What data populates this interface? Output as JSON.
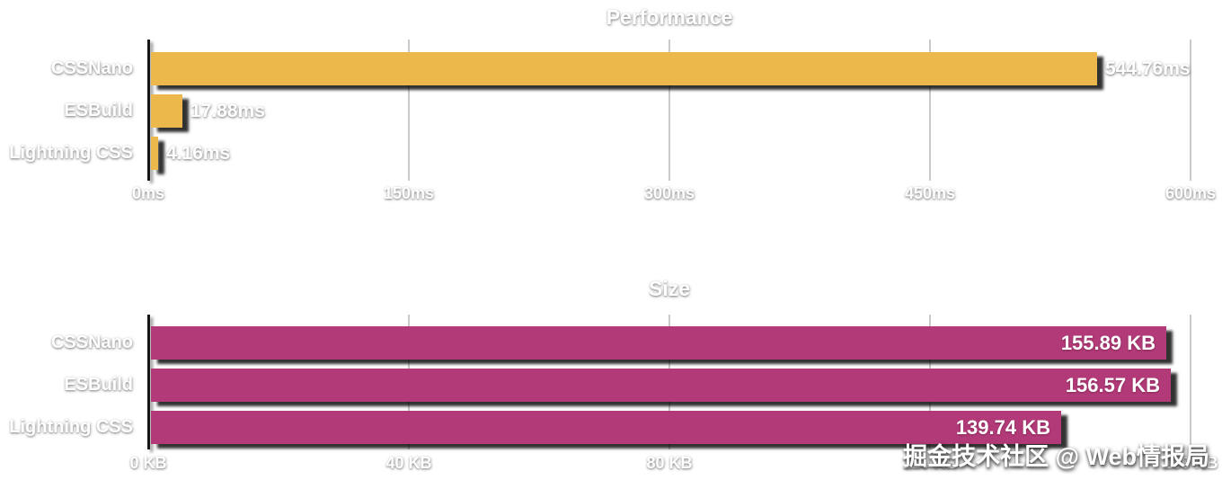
{
  "watermark": "掘金技术社区 @ Web情报局",
  "colors": {
    "background": "#ffffff",
    "performance_bar": "#ECB84C",
    "size_bar": "#B23A78",
    "grid_line": "#c9c9c9",
    "axis_line": "#161616",
    "bar_value_text": "#ffffff"
  },
  "chart_data": [
    {
      "type": "bar",
      "orientation": "horizontal",
      "title": "Performance",
      "categories": [
        "CSSNano",
        "ESBuild",
        "Lightning CSS"
      ],
      "values": [
        544.76,
        17.88,
        4.16
      ],
      "value_labels": [
        "544.76ms",
        "17.88ms",
        "4.16ms"
      ],
      "value_label_position": "outside",
      "unit": "ms",
      "xlim": [
        0,
        600
      ],
      "x_ticks": [
        "0ms",
        "150ms",
        "300ms",
        "450ms",
        "600ms"
      ],
      "bar_color": "#ECB84C",
      "grid": "vertical",
      "legend": "none"
    },
    {
      "type": "bar",
      "orientation": "horizontal",
      "title": "Size",
      "categories": [
        "CSSNano",
        "ESBuild",
        "Lightning CSS"
      ],
      "values": [
        155.89,
        156.57,
        139.74
      ],
      "value_labels": [
        "155.89 KB",
        "156.57 KB",
        "139.74 KB"
      ],
      "value_label_position": "inside",
      "unit": "KB",
      "xlim": [
        0,
        160
      ],
      "x_ticks": [
        "0 KB",
        "40 KB",
        "80 KB",
        "120 KB",
        "160 KB"
      ],
      "bar_color": "#B23A78",
      "grid": "vertical",
      "legend": "none"
    }
  ]
}
